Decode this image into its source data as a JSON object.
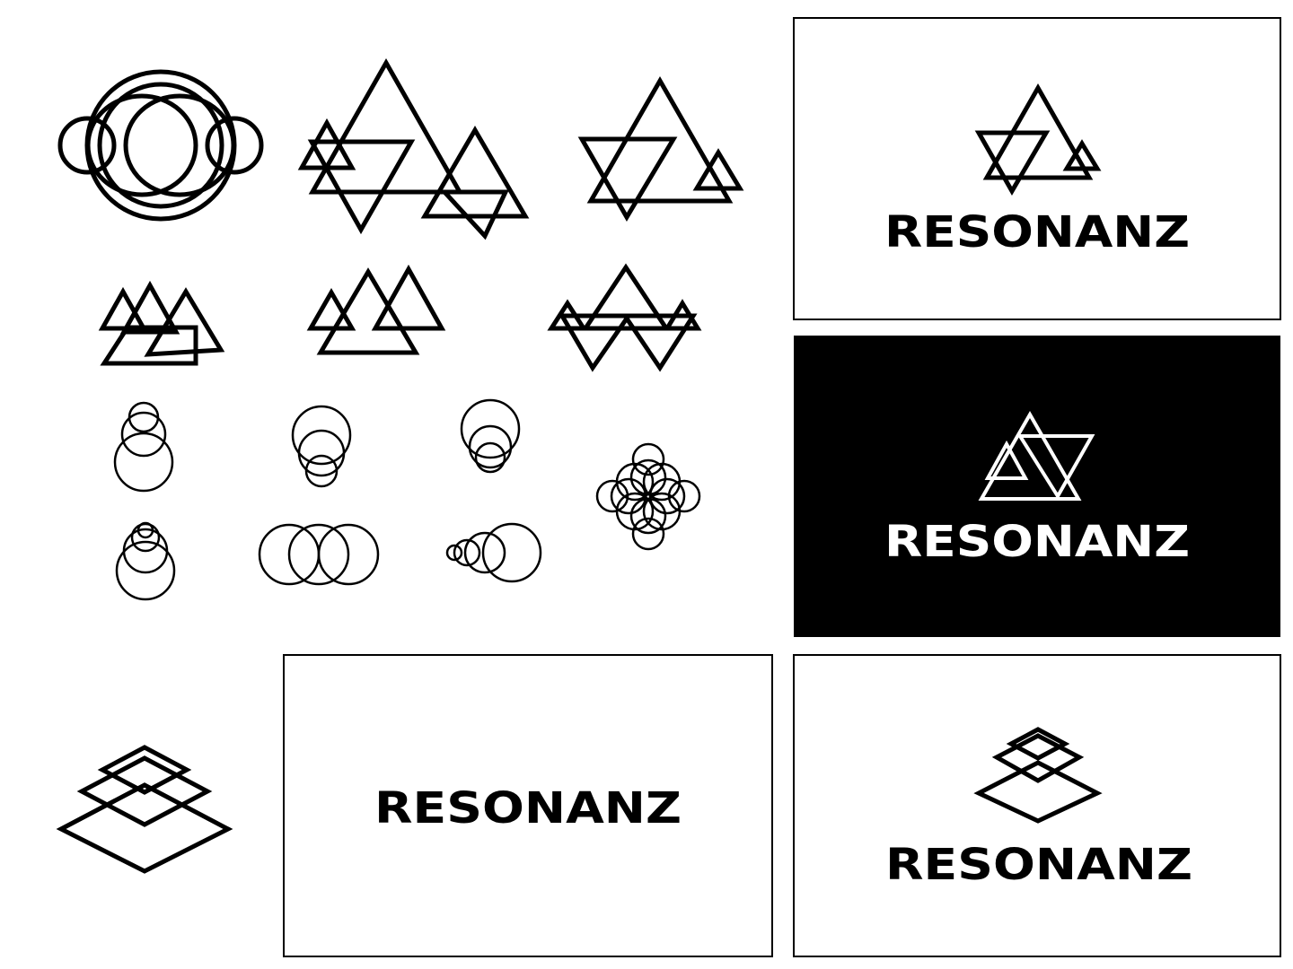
{
  "brand": {
    "wordmark": "RESONANZ"
  },
  "colors": {
    "ink": "#000000",
    "paper": "#ffffff"
  },
  "panels": [
    {
      "id": "panel-top-right",
      "background": "#ffffff",
      "wordmark_color": "#000000",
      "emblem": "triangles"
    },
    {
      "id": "panel-middle-right",
      "background": "#000000",
      "wordmark_color": "#ffffff",
      "emblem": "triangles-inverted"
    },
    {
      "id": "panel-bottom-center",
      "background": "#ffffff",
      "wordmark_color": "#000000",
      "emblem": "none"
    },
    {
      "id": "panel-bottom-right",
      "background": "#ffffff",
      "wordmark_color": "#000000",
      "emblem": "diamonds"
    }
  ]
}
